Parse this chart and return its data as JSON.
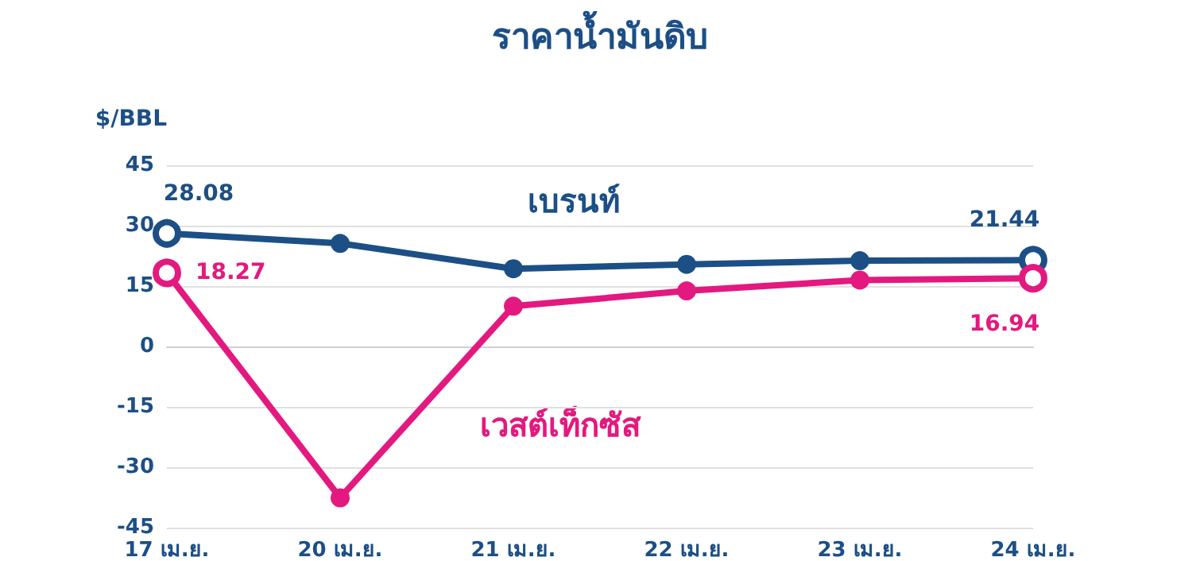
{
  "chart_data": {
    "type": "line",
    "title": "ราคาน้ำมันดิบ",
    "ylabel": "$/BBL",
    "categories": [
      "17 เม.ย.",
      "20 เม.ย.",
      "21 เม.ย.",
      "22 เม.ย.",
      "23 เม.ย.",
      "24 เม.ย."
    ],
    "series": [
      {
        "name": "เบรนท์",
        "color": "#1c4f86",
        "values": [
          28.08,
          25.6,
          19.3,
          20.4,
          21.3,
          21.44
        ],
        "value_labels": [
          "28.08",
          null,
          null,
          null,
          null,
          "21.44"
        ]
      },
      {
        "name": "เวสต์เท็กซัส",
        "color": "#e3197f",
        "values": [
          18.27,
          -37.6,
          10.0,
          13.8,
          16.5,
          16.94
        ],
        "value_labels": [
          "18.27",
          null,
          null,
          null,
          null,
          "16.94"
        ]
      }
    ],
    "ylim": [
      -45,
      45
    ],
    "yticks": [
      -45,
      -30,
      -15,
      0,
      15,
      30,
      45
    ],
    "grid": "y",
    "marker": "circle",
    "line_style": "solid",
    "legend": false
  }
}
